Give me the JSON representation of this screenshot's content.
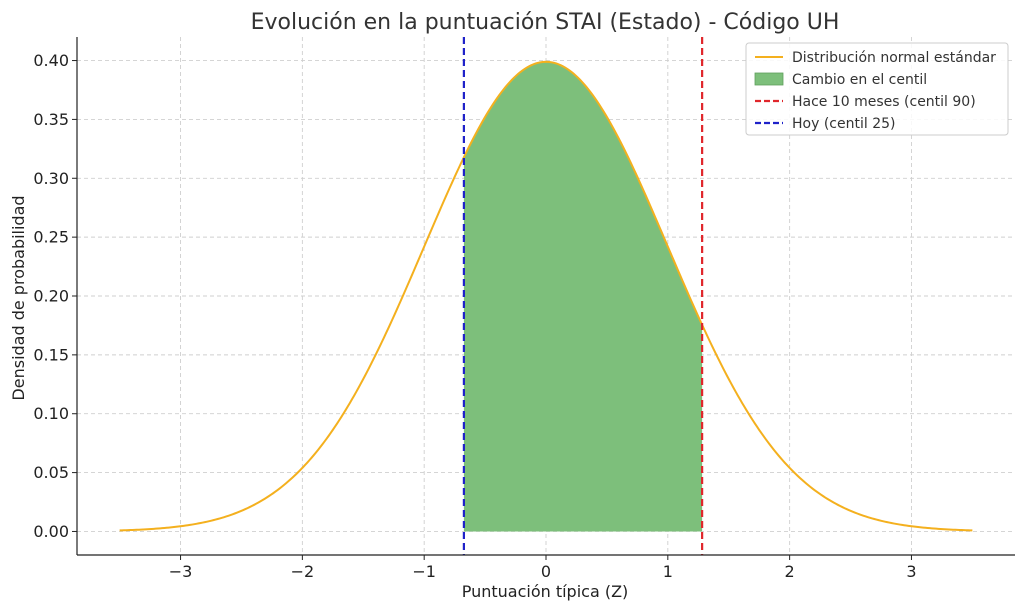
{
  "chart_data": {
    "type": "area",
    "title": "Evolución en la puntuación STAI (Estado) - Código UH",
    "xlabel": "Puntuación típica (Z)",
    "ylabel": "Densidad de probabilidad",
    "xlim": [
      -3.85,
      3.85
    ],
    "ylim": [
      -0.02,
      0.42
    ],
    "x_ticks": [
      -3,
      -2,
      -1,
      0,
      1,
      2,
      3
    ],
    "x_tick_labels": [
      "−3",
      "−2",
      "−1",
      "0",
      "1",
      "2",
      "3"
    ],
    "y_ticks": [
      0.0,
      0.05,
      0.1,
      0.15,
      0.2,
      0.25,
      0.3,
      0.35,
      0.4
    ],
    "y_tick_labels": [
      "0.00",
      "0.05",
      "0.10",
      "0.15",
      "0.20",
      "0.25",
      "0.30",
      "0.35",
      "0.40"
    ],
    "grid": true,
    "legend_position": "top-right",
    "curve": {
      "name": "Distribución normal estándar",
      "function": "standard_normal_pdf",
      "x_range": [
        -3.5,
        3.5
      ],
      "color": "#f4b01e"
    },
    "shaded_region": {
      "name": "Cambio en el centil",
      "x_from": -0.674,
      "x_to": 1.2816,
      "color": "#7dbf7b"
    },
    "vertical_lines": [
      {
        "name": "Hace 10 meses (centil 90)",
        "x": 1.2816,
        "color": "#e0262b",
        "style": "dashed"
      },
      {
        "name": "Hoy (centil 25)",
        "x": -0.674,
        "color": "#1f22c9",
        "style": "dashed"
      }
    ],
    "legend": [
      {
        "label": "Distribución normal estándar",
        "kind": "line",
        "color": "#f4b01e"
      },
      {
        "label": "Cambio en el centil",
        "kind": "patch",
        "color": "#7dbf7b"
      },
      {
        "label": "Hace 10 meses (centil 90)",
        "kind": "dashed",
        "color": "#e0262b"
      },
      {
        "label": "Hoy (centil 25)",
        "kind": "dashed",
        "color": "#1f22c9"
      }
    ]
  }
}
